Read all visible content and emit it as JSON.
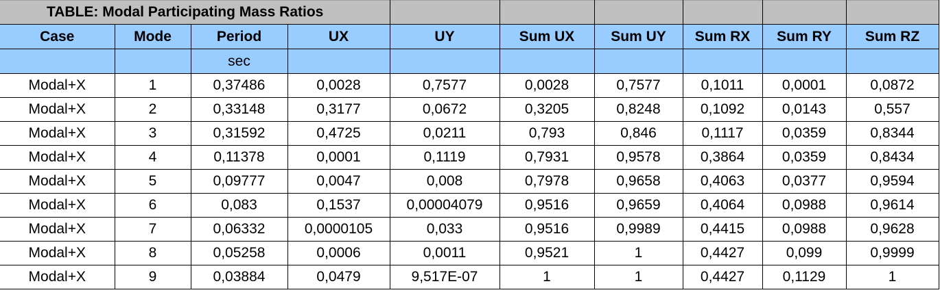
{
  "title": "TABLE:  Modal Participating Mass Ratios",
  "colors": {
    "title_bg": "#c0c0c0",
    "header_bg": "#99ccff"
  },
  "columns": [
    "Case",
    "Mode",
    "Period",
    "UX",
    "UY",
    "Sum UX",
    "Sum UY",
    "Sum RX",
    "Sum RY",
    "Sum RZ"
  ],
  "units": [
    "",
    "",
    "sec",
    "",
    "",
    "",
    "",
    "",
    "",
    ""
  ],
  "rows": [
    [
      "Modal+X",
      "1",
      "0,37486",
      "0,0028",
      "0,7577",
      "0,0028",
      "0,7577",
      "0,1011",
      "0,0001",
      "0,0872"
    ],
    [
      "Modal+X",
      "2",
      "0,33148",
      "0,3177",
      "0,0672",
      "0,3205",
      "0,8248",
      "0,1092",
      "0,0143",
      "0,557"
    ],
    [
      "Modal+X",
      "3",
      "0,31592",
      "0,4725",
      "0,0211",
      "0,793",
      "0,846",
      "0,1117",
      "0,0359",
      "0,8344"
    ],
    [
      "Modal+X",
      "4",
      "0,11378",
      "0,0001",
      "0,1119",
      "0,7931",
      "0,9578",
      "0,3864",
      "0,0359",
      "0,8434"
    ],
    [
      "Modal+X",
      "5",
      "0,09777",
      "0,0047",
      "0,008",
      "0,7978",
      "0,9658",
      "0,4063",
      "0,0377",
      "0,9594"
    ],
    [
      "Modal+X",
      "6",
      "0,083",
      "0,1537",
      "0,00004079",
      "0,9516",
      "0,9659",
      "0,4064",
      "0,0988",
      "0,9614"
    ],
    [
      "Modal+X",
      "7",
      "0,06332",
      "0,0000105",
      "0,033",
      "0,9516",
      "0,9989",
      "0,4415",
      "0,0988",
      "0,9628"
    ],
    [
      "Modal+X",
      "8",
      "0,05258",
      "0,0006",
      "0,0011",
      "0,9521",
      "1",
      "0,4427",
      "0,099",
      "0,9999"
    ],
    [
      "Modal+X",
      "9",
      "0,03884",
      "0,0479",
      "9,517E-07",
      "1",
      "1",
      "0,4427",
      "0,1129",
      "1"
    ]
  ]
}
